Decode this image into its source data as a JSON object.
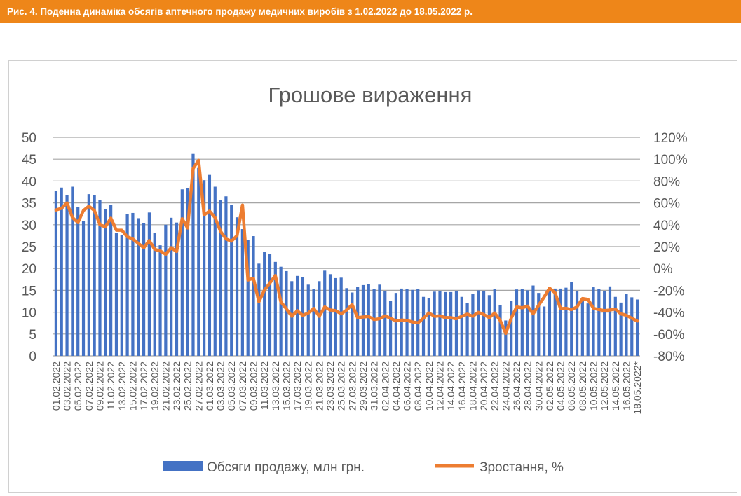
{
  "banner": {
    "caption": "Рис. 4. Поденна динаміка обсягів аптечного продажу медичних виробів з 1.02.2022 до 18.05.2022 р."
  },
  "colors": {
    "banner": "#EE8619",
    "bars": "#4472C4",
    "line": "#ED7D31",
    "grid": "#a6a6a6",
    "text": "#595959"
  },
  "chart_data": {
    "type": "bar+line",
    "title": "Грошове вираження",
    "xlabel": "",
    "ylabel": "",
    "ylim": [
      0,
      50
    ],
    "y_ticks": [
      "0",
      "5",
      "10",
      "15",
      "20",
      "25",
      "30",
      "35",
      "40",
      "45",
      "50"
    ],
    "y2lim": [
      -80,
      120
    ],
    "y2_ticks": [
      "-80%",
      "-60%",
      "-40%",
      "-20%",
      "0%",
      "20%",
      "40%",
      "60%",
      "80%",
      "100%",
      "120%"
    ],
    "grid": true,
    "legend_position": "bottom",
    "x_tick_labels_every": 2,
    "x_tick_labels": [
      "01.02.2022",
      "03.02.2022",
      "05.02.2022",
      "07.02.2022",
      "09.02.2022",
      "11.02.2022",
      "13.02.2022",
      "15.02.2022",
      "17.02.2022",
      "19.02.2022",
      "21.02.2022",
      "23.02.2022",
      "25.02.2022",
      "27.02.2022",
      "01.03.2022",
      "03.03.2022",
      "05.03.2022",
      "07.03.2022",
      "09.03.2022",
      "11.03.2022",
      "13.03.2022",
      "15.03.2022",
      "17.03.2022",
      "19.03.2022",
      "21.03.2022",
      "23.03.2022",
      "25.03.2022",
      "27.03.2022",
      "29.03.2022",
      "31.03.2022",
      "02.04.2022",
      "04.04.2022",
      "06.04.2022",
      "08.04.2022",
      "10.04.2022",
      "12.04.2022",
      "14.04.2022",
      "16.04.2022",
      "18.04.2022",
      "20.04.2022",
      "22.04.2022",
      "24.04.2022",
      "26.04.2022",
      "28.04.2022",
      "30.04.2022",
      "02.05.2022",
      "04.05.2022",
      "06.05.2022",
      "08.05.2022",
      "10.05.2022",
      "12.05.2022",
      "14.05.2022",
      "16.05.2022",
      "18.05.2022*"
    ],
    "series": [
      {
        "name": "Обсяги продажу, млн грн.",
        "type": "bar",
        "axis": "left",
        "values": [
          37.7,
          38.5,
          36.7,
          38.7,
          34.1,
          30.8,
          37.0,
          36.8,
          35.7,
          33.6,
          34.6,
          28.2,
          27.7,
          32.5,
          32.7,
          31.5,
          30.3,
          32.8,
          28.2,
          25.3,
          30.0,
          31.6,
          30.5,
          38.1,
          38.3,
          46.2,
          43.0,
          40.2,
          41.4,
          38.7,
          35.6,
          36.5,
          34.6,
          31.7,
          29.0,
          26.6,
          27.4,
          21.1,
          23.8,
          23.3,
          21.5,
          20.4,
          19.4,
          17.1,
          18.3,
          18.1,
          16.3,
          15.3,
          17.1,
          19.5,
          18.7,
          17.8,
          17.9,
          15.5,
          14.5,
          15.8,
          16.2,
          16.5,
          15.3,
          16.3,
          14.8,
          12.6,
          14.4,
          15.4,
          15.3,
          15.1,
          15.3,
          13.5,
          13.2,
          14.7,
          14.8,
          14.6,
          14.6,
          14.9,
          13.5,
          12.1,
          14.1,
          15.0,
          14.8,
          13.9,
          15.3,
          11.7,
          8.1,
          12.6,
          15.2,
          15.3,
          15.0,
          16.1,
          14.4,
          11.3,
          15.5,
          15.4,
          15.4,
          15.6,
          16.9,
          14.9,
          13.0,
          12.0,
          15.7,
          15.3,
          14.9,
          15.9,
          13.5,
          12.2,
          14.2,
          13.4,
          12.9
        ]
      },
      {
        "name": "Зростання, %",
        "type": "line",
        "axis": "right",
        "values": [
          53.5,
          55,
          60,
          46.5,
          42,
          53,
          57,
          53,
          40,
          38,
          46,
          35,
          35,
          29,
          27,
          23,
          19,
          25.5,
          17.5,
          16,
          13,
          19,
          15.5,
          45.5,
          37,
          91.5,
          99,
          49,
          52.5,
          46.5,
          34,
          27,
          25,
          30,
          58,
          -10.5,
          -9,
          -30.5,
          -19.8,
          -13.3,
          -6.5,
          -30.5,
          -37,
          -43.8,
          -38.6,
          -43,
          -40.8,
          -36.6,
          -43.8,
          -35.2,
          -38,
          -38.6,
          -41.6,
          -38,
          -33,
          -45,
          -44.4,
          -44,
          -46.8,
          -46,
          -43.4,
          -45.5,
          -48,
          -47.2,
          -47.6,
          -49,
          -49.8,
          -45.5,
          -40.8,
          -43.8,
          -43.4,
          -45,
          -45,
          -46,
          -43.8,
          -41.8,
          -43.8,
          -40.1,
          -42.2,
          -45,
          -40.8,
          -47.6,
          -59.4,
          -45.5,
          -35.2,
          -36,
          -34.4,
          -41.6,
          -33.7,
          -26.2,
          -18,
          -22.3,
          -36.8,
          -36.4,
          -37.6,
          -35.2,
          -27.5,
          -28.3,
          -36.4,
          -37.6,
          -38.5,
          -38,
          -37.2,
          -41.6,
          -42.9,
          -45.5,
          -48.2
        ]
      }
    ]
  }
}
